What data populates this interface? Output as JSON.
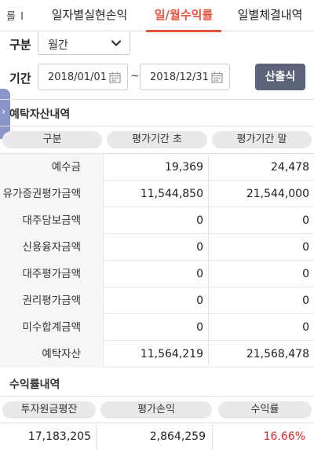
{
  "tabs": {
    "fragment": "를 I",
    "items": [
      "일자별실현손익",
      "일/월수익률",
      "일별체결내역"
    ],
    "active_index": 1,
    "active_color": "#e8533f"
  },
  "filter": {
    "kind_label": "구분",
    "kind_value": "월간",
    "period_label": "기간",
    "from_date": "2018/01/01",
    "to_date": "2018/12/31",
    "tilde": "~",
    "calc_button": "산출식"
  },
  "deposit_section": {
    "title": "예탁자산내역",
    "headers": [
      "구분",
      "평가기간 초",
      "평가기간 말"
    ],
    "rows": [
      {
        "label": "예수금",
        "start": "19,369",
        "end": "24,478"
      },
      {
        "label": "유가증권평가금액",
        "start": "11,544,850",
        "end": "21,544,000"
      },
      {
        "label": "대주담보금액",
        "start": "0",
        "end": "0"
      },
      {
        "label": "신용융자금액",
        "start": "0",
        "end": "0"
      },
      {
        "label": "대주평가금액",
        "start": "0",
        "end": "0"
      },
      {
        "label": "권리평가금액",
        "start": "0",
        "end": "0"
      },
      {
        "label": "미수합계금액",
        "start": "0",
        "end": "0"
      },
      {
        "label": "예탁자산",
        "start": "11,564,219",
        "end": "21,568,478"
      }
    ]
  },
  "return_section": {
    "title": "수익률내역",
    "headers": [
      "투자원금평잔",
      "평가손익",
      "수익률"
    ],
    "values": {
      "principal": "17,183,205",
      "profit": "2,864,259",
      "rate": "16.66%"
    },
    "rate_color": "#e02424"
  },
  "side_handle": {
    "glyph": "›",
    "color": "#8a96c9"
  }
}
